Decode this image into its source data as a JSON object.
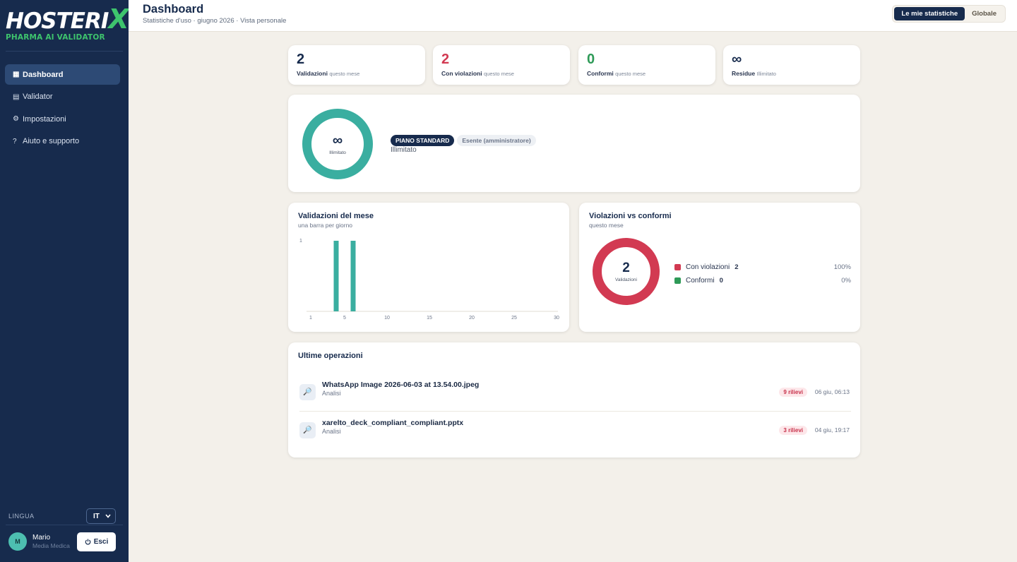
{
  "brand": {
    "name": "HOSTERI",
    "name_x": "X",
    "tagline": "PHARMA AI VALIDATOR"
  },
  "sidebar": {
    "items": [
      {
        "icon": "▦",
        "label": "Dashboard",
        "active": true
      },
      {
        "icon": "▤",
        "label": "Validator"
      },
      {
        "icon": "⚙",
        "label": "Impostazioni"
      },
      {
        "icon": "?",
        "label": "Aiuto e supporto"
      }
    ],
    "language_label": "LINGUA",
    "language_value": "IT",
    "user": {
      "initial": "M",
      "name": "Mario",
      "role": "Media Medica"
    },
    "logout_label": "Esci"
  },
  "header": {
    "title": "Dashboard",
    "subtitle": "Statistiche d'uso · giugno 2026 · Vista personale",
    "toggle": {
      "mine": "Le mie statistiche",
      "global": "Globale"
    }
  },
  "stats": [
    {
      "value": "2",
      "label": "Validazioni",
      "sub": "questo mese",
      "color": "#172b4d"
    },
    {
      "value": "2",
      "label": "Con violazioni",
      "sub": "questo mese",
      "color": "#d23a52"
    },
    {
      "value": "0",
      "label": "Conformi",
      "sub": "questo mese",
      "color": "#2e9a57"
    },
    {
      "value": "∞",
      "label": "Residue",
      "sub": "Illimitato",
      "color": "#172b4d"
    }
  ],
  "plan": {
    "ring_symbol": "∞",
    "ring_label": "Illimitato",
    "badge": "PIANO STANDARD",
    "exempt": "Esente (amministratore)",
    "text": "Illimitato",
    "ring_color": "#3aaea0"
  },
  "monthly": {
    "title": "Validazioni del mese",
    "subtitle": "una barra per giorno"
  },
  "chart_data": {
    "type": "bar",
    "x": [
      1,
      2,
      3,
      4,
      5,
      6,
      7,
      8,
      9,
      10,
      11,
      12,
      13,
      14,
      15,
      16,
      17,
      18,
      19,
      20,
      21,
      22,
      23,
      24,
      25,
      26,
      27,
      28,
      29,
      30
    ],
    "values": [
      0,
      0,
      0,
      1,
      0,
      1,
      0,
      0,
      0,
      0,
      0,
      0,
      0,
      0,
      0,
      0,
      0,
      0,
      0,
      0,
      0,
      0,
      0,
      0,
      0,
      0,
      0,
      0,
      0,
      0
    ],
    "xticks": [
      "1",
      "5",
      "10",
      "15",
      "20",
      "25",
      "30"
    ],
    "xtick_days": [
      1,
      5,
      10,
      15,
      20,
      25,
      30
    ],
    "yticks": [
      "1"
    ],
    "ylim": [
      0,
      1
    ],
    "bar_color": "#3aaea0"
  },
  "violations": {
    "title": "Violazioni vs conformi",
    "subtitle": "questo mese",
    "center_value": "2",
    "center_label": "Validazioni",
    "legend": [
      {
        "label": "Con violazioni",
        "value": "2",
        "pct": "100%",
        "color": "#d23a52"
      },
      {
        "label": "Conformi",
        "value": "0",
        "pct": "0%",
        "color": "#2e9a57"
      }
    ]
  },
  "operations": {
    "title": "Ultime operazioni",
    "rows": [
      {
        "icon": "🔎",
        "name": "WhatsApp Image 2026-06-03 at 13.54.00.jpeg",
        "type": "Analisi",
        "badge": "9 rilievi",
        "time": "06 giu, 06:13"
      },
      {
        "icon": "🔎",
        "name": "xarelto_deck_compliant_compliant.pptx",
        "type": "Analisi",
        "badge": "3 rilievi",
        "time": "04 giu, 19:17"
      }
    ]
  }
}
